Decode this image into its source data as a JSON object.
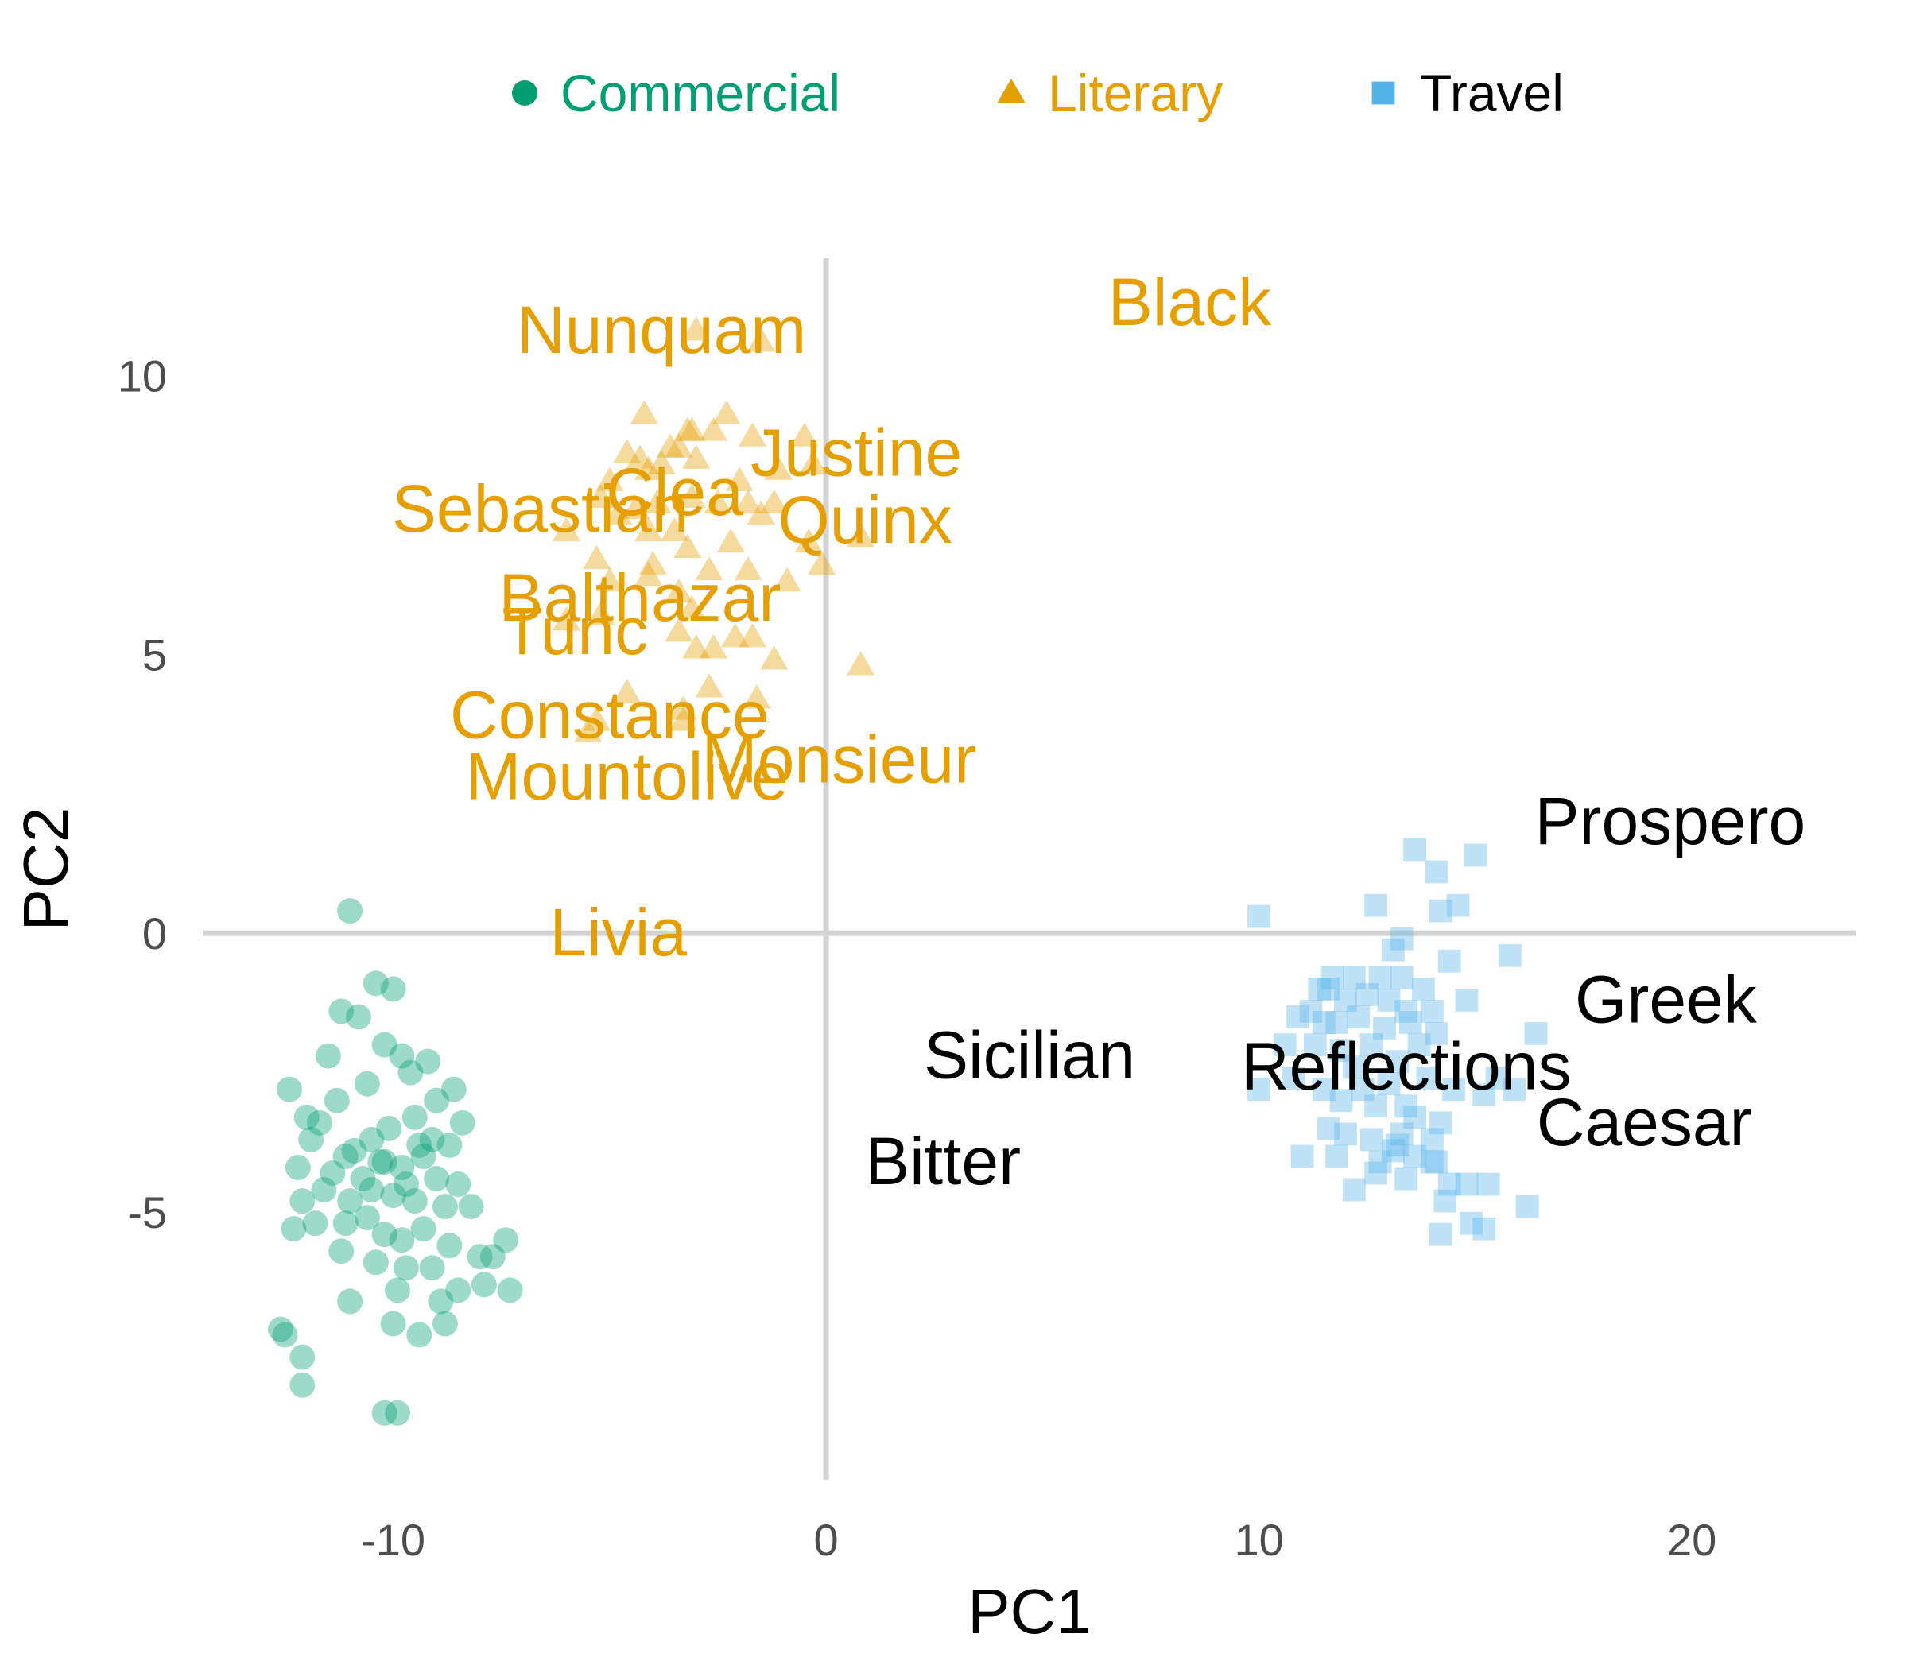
{
  "chart_data": {
    "type": "scatter",
    "title": "",
    "xlabel": "PC1",
    "ylabel": "PC2",
    "xlim": [
      -14.4,
      23.8
    ],
    "ylim": [
      -9.8,
      12.1
    ],
    "x_ticks": [
      {
        "value": -10,
        "label": "-10"
      },
      {
        "value": 0,
        "label": "0"
      },
      {
        "value": 10,
        "label": "10"
      },
      {
        "value": 20,
        "label": "20"
      }
    ],
    "y_ticks": [
      {
        "value": -5,
        "label": "-5"
      },
      {
        "value": 0,
        "label": "0"
      },
      {
        "value": 5,
        "label": "5"
      },
      {
        "value": 10,
        "label": "10"
      }
    ],
    "grid": false,
    "reference_lines": {
      "x": 0,
      "y": 0
    },
    "legend": {
      "position": "top",
      "orientation": "horizontal"
    },
    "series": [
      {
        "name": "Commercial",
        "marker": "circle",
        "color": "#009E73",
        "x": [
          -11.0,
          -10.4,
          -10.0,
          -11.2,
          -10.8,
          -9.8,
          -9.2,
          -10.2,
          -11.5,
          -9.6,
          -12.4,
          -10.6,
          -11.3,
          -9.0,
          -8.6,
          -8.4,
          -10.1,
          -9.5,
          -11.7,
          -12.0,
          -10.9,
          -10.5,
          -9.4,
          -9.1,
          -8.7,
          -11.9,
          -11.1,
          -10.3,
          -9.8,
          -9.3,
          -12.2,
          -11.4,
          -10.7,
          -10.2,
          -9.7,
          -9.0,
          -8.5,
          -12.1,
          -11.6,
          -11.0,
          -10.5,
          -10.0,
          -9.5,
          -8.8,
          -8.2,
          -7.4,
          -12.3,
          -11.8,
          -11.1,
          -10.6,
          -10.2,
          -9.8,
          -9.3,
          -8.7,
          -8.0,
          -7.7,
          -11.2,
          -10.4,
          -9.7,
          -9.1,
          -8.5,
          -7.9,
          -7.3,
          -11.0,
          -9.9,
          -8.9,
          -12.6,
          -12.5,
          -12.1,
          -10.0,
          -9.4,
          -8.8,
          -12.1,
          -10.2,
          -9.9
        ],
        "y": [
          0.4,
          -0.9,
          -1.0,
          -1.4,
          -1.5,
          -2.2,
          -2.3,
          -2.0,
          -2.2,
          -2.5,
          -2.8,
          -2.7,
          -3.0,
          -3.0,
          -2.8,
          -3.4,
          -3.5,
          -3.3,
          -3.4,
          -3.3,
          -3.9,
          -3.7,
          -3.8,
          -3.7,
          -3.8,
          -3.7,
          -4.0,
          -4.1,
          -4.2,
          -4.0,
          -4.2,
          -4.3,
          -4.4,
          -4.1,
          -4.5,
          -4.4,
          -4.5,
          -4.8,
          -4.6,
          -4.8,
          -4.6,
          -4.7,
          -4.8,
          -4.9,
          -4.9,
          -5.5,
          -5.3,
          -5.2,
          -5.2,
          -5.1,
          -5.4,
          -5.5,
          -5.3,
          -5.6,
          -5.8,
          -5.8,
          -5.7,
          -5.9,
          -6.0,
          -6.0,
          -6.4,
          -6.3,
          -6.4,
          -6.6,
          -6.4,
          -6.6,
          -7.1,
          -7.2,
          -7.6,
          -7.0,
          -7.2,
          -7.0,
          -8.1,
          -8.6,
          -8.6
        ]
      },
      {
        "name": "Literary",
        "marker": "triangle",
        "color": "#E69F00",
        "x": [
          -3.0,
          -1.5,
          -4.2,
          -3.1,
          -3.2,
          -0.5,
          -2.3,
          -1.7,
          -2.6,
          -3.4,
          -3.8,
          -4.1,
          -4.6,
          -4.3,
          -3.6,
          -3.0,
          -2.0,
          -1.1,
          -0.3,
          0.8,
          -5.0,
          -5.2,
          -4.4,
          -3.9,
          -3.1,
          -2.5,
          -1.8,
          -1.5,
          -1.2,
          -4.1,
          -4.8,
          -3.5,
          -2.2,
          -3.2,
          -4.0,
          -0.4,
          -6.0,
          -5.3,
          -5.0,
          -4.1,
          -2.7,
          -1.8,
          -0.9,
          -0.1,
          -3.4,
          -3.1,
          -5.2,
          -6.0,
          -3.4,
          -3.0,
          -2.1,
          -2.6,
          -1.7,
          -1.2,
          0.8,
          -2.7,
          -1.6,
          -4.6,
          -3.3,
          -3.3,
          -5.3,
          -5.5
        ],
        "y": [
          10.8,
          10.6,
          9.3,
          9.0,
          9.0,
          8.9,
          9.3,
          8.9,
          9.0,
          8.7,
          8.4,
          8.3,
          8.6,
          8.5,
          8.7,
          8.5,
          8.1,
          8.3,
          8.4,
          7.1,
          8.1,
          7.8,
          7.6,
          7.7,
          7.8,
          7.7,
          7.7,
          7.5,
          7.7,
          7.2,
          7.5,
          7.2,
          7.0,
          6.9,
          6.6,
          7.0,
          7.2,
          6.7,
          6.3,
          6.4,
          6.5,
          6.5,
          6.3,
          6.6,
          6.1,
          5.8,
          5.7,
          5.6,
          5.4,
          5.1,
          5.3,
          5.1,
          5.3,
          4.9,
          4.8,
          4.4,
          4.2,
          4.3,
          4.0,
          3.8,
          3.8,
          3.6
        ],
        "labels": [
          {
            "text": "Nunquam",
            "x": -3.8,
            "y": 10.8
          },
          {
            "text": "Black",
            "x": 8.4,
            "y": 11.3
          },
          {
            "text": "Justine",
            "x": 0.7,
            "y": 8.6
          },
          {
            "text": "Clea",
            "x": -3.5,
            "y": 7.9
          },
          {
            "text": "Sebastian",
            "x": -6.6,
            "y": 7.6
          },
          {
            "text": "Quinx",
            "x": 0.9,
            "y": 7.4
          },
          {
            "text": "Balthazar",
            "x": -4.3,
            "y": 6.0
          },
          {
            "text": "Tunc",
            "x": -5.8,
            "y": 5.4
          },
          {
            "text": "Constance",
            "x": -5.0,
            "y": 3.9
          },
          {
            "text": "Monsieur",
            "x": 0.3,
            "y": 3.1
          },
          {
            "text": "Mountolive",
            "x": -4.6,
            "y": 2.8
          },
          {
            "text": "Livia",
            "x": -4.8,
            "y": 0.0
          }
        ]
      },
      {
        "name": "Travel",
        "marker": "square",
        "color": "#56B4E9",
        "x": [
          13.6,
          15.0,
          14.1,
          12.7,
          14.2,
          14.6,
          10.0,
          13.3,
          13.1,
          15.8,
          14.4,
          11.7,
          12.2,
          12.8,
          13.3,
          13.8,
          14.8,
          11.4,
          11.6,
          12.0,
          12.5,
          13.0,
          13.4,
          14.0,
          10.9,
          11.2,
          11.5,
          11.8,
          12.3,
          12.9,
          13.5,
          14.1,
          16.4,
          10.6,
          11.3,
          11.9,
          12.6,
          13.2,
          13.7,
          15.5,
          12.2,
          10.8,
          11.5,
          12.4,
          13.0,
          13.9,
          14.5,
          11.9,
          12.7,
          13.4,
          10.0,
          15.2,
          15.9,
          13.6,
          14.2,
          11.6,
          12.0,
          12.6,
          13.3,
          14.0,
          11.8,
          13.1,
          12.8,
          13.6,
          13.2,
          14.0,
          14.1,
          11.0,
          12.7,
          13.4,
          14.4,
          14.8,
          15.3,
          12.2,
          14.3,
          16.2,
          15.2,
          14.2,
          14.9
        ],
        "y": [
          1.5,
          1.4,
          1.1,
          0.5,
          0.4,
          0.5,
          0.3,
          -0.1,
          -0.3,
          -0.4,
          -0.5,
          -0.8,
          -0.8,
          -0.8,
          -0.8,
          -1.0,
          -1.2,
          -1.0,
          -1.0,
          -1.2,
          -1.1,
          -1.2,
          -1.4,
          -1.4,
          -1.5,
          -1.4,
          -1.6,
          -1.6,
          -1.5,
          -1.7,
          -1.6,
          -1.8,
          -1.8,
          -2.0,
          -2.0,
          -2.1,
          -2.0,
          -2.3,
          -2.0,
          -2.6,
          -2.4,
          -2.6,
          -2.8,
          -2.8,
          -2.7,
          -2.6,
          -2.8,
          -3.0,
          -3.1,
          -3.1,
          -2.8,
          -2.9,
          -2.8,
          -3.3,
          -3.4,
          -3.5,
          -3.6,
          -3.7,
          -3.6,
          -3.7,
          -4.0,
          -3.9,
          -4.1,
          -4.0,
          -3.8,
          -4.1,
          -4.1,
          -4.0,
          -4.3,
          -4.4,
          -4.5,
          -4.5,
          -4.5,
          -4.6,
          -4.8,
          -4.9,
          -5.3,
          -5.4,
          -5.2
        ]
      }
    ],
    "unclassified_labels": [
      {
        "text": "Prospero",
        "x": 19.5,
        "y": 2.0
      },
      {
        "text": "Greek",
        "x": 19.4,
        "y": -1.2
      },
      {
        "text": "Sicilian",
        "x": 4.7,
        "y": -2.2
      },
      {
        "text": "Reflections",
        "x": 13.4,
        "y": -2.4
      },
      {
        "text": "Caesar",
        "x": 18.9,
        "y": -3.4
      },
      {
        "text": "Bitter",
        "x": 2.7,
        "y": -4.1
      }
    ],
    "label_color_unclassified": "#000000"
  }
}
